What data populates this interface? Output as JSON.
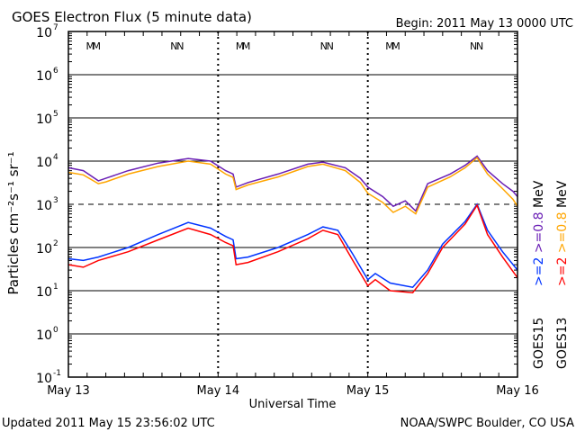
{
  "chart_data": {
    "type": "line",
    "title": "GOES Electron Flux (5 minute data)",
    "begin_label": "Begin: 2011 May 13 0000 UTC",
    "xlabel": "Universal Time",
    "ylabel": "Particles cm⁻²s⁻¹ sr⁻¹",
    "xlim": [
      0,
      3
    ],
    "ylim": [
      0.1,
      10000000
    ],
    "yscale": "log",
    "x_ticks": [
      {
        "value": 0,
        "label": "May 13"
      },
      {
        "value": 1,
        "label": "May 14"
      },
      {
        "value": 2,
        "label": "May 15"
      },
      {
        "value": 3,
        "label": "May 16"
      }
    ],
    "y_ticks": [
      {
        "exp": "7",
        "base": "10"
      },
      {
        "exp": "6",
        "base": "10"
      },
      {
        "exp": "5",
        "base": "10"
      },
      {
        "exp": "4",
        "base": "10"
      },
      {
        "exp": "3",
        "base": "10"
      },
      {
        "exp": "2",
        "base": "10"
      },
      {
        "exp": "1",
        "base": "10"
      },
      {
        "exp": "0",
        "base": "10"
      },
      {
        "exp": "-1",
        "base": "10"
      }
    ],
    "threshold": 1000,
    "markers": [
      {
        "day": 0.17,
        "label": "M"
      },
      {
        "day": 0.73,
        "label": "N"
      },
      {
        "day": 1.17,
        "label": "M"
      },
      {
        "day": 1.73,
        "label": "N"
      },
      {
        "day": 2.17,
        "label": "M"
      },
      {
        "day": 2.73,
        "label": "N"
      }
    ],
    "series": [
      {
        "name": "GOES15 >=0.8 MeV",
        "color": "#6a1fb5",
        "points": [
          [
            0,
            7000
          ],
          [
            0.1,
            6000
          ],
          [
            0.2,
            3500
          ],
          [
            0.25,
            4000
          ],
          [
            0.4,
            6000
          ],
          [
            0.6,
            9000
          ],
          [
            0.8,
            11500
          ],
          [
            0.95,
            10000
          ],
          [
            1.05,
            6000
          ],
          [
            1.1,
            5000
          ],
          [
            1.12,
            2500
          ],
          [
            1.2,
            3200
          ],
          [
            1.4,
            5000
          ],
          [
            1.6,
            8500
          ],
          [
            1.7,
            9500
          ],
          [
            1.85,
            7000
          ],
          [
            1.95,
            4000
          ],
          [
            2.0,
            2500
          ],
          [
            2.1,
            1500
          ],
          [
            2.17,
            900
          ],
          [
            2.25,
            1200
          ],
          [
            2.32,
            700
          ],
          [
            2.4,
            3000
          ],
          [
            2.55,
            5000
          ],
          [
            2.65,
            8000
          ],
          [
            2.73,
            13000
          ],
          [
            2.8,
            6000
          ],
          [
            2.9,
            3000
          ],
          [
            2.97,
            2000
          ],
          [
            3.0,
            1500
          ]
        ]
      },
      {
        "name": "GOES13 >=0.8 MeV",
        "color": "#ffa500",
        "points": [
          [
            0,
            5500
          ],
          [
            0.1,
            4800
          ],
          [
            0.2,
            3000
          ],
          [
            0.25,
            3300
          ],
          [
            0.4,
            5000
          ],
          [
            0.6,
            7500
          ],
          [
            0.8,
            10000
          ],
          [
            0.95,
            8500
          ],
          [
            1.05,
            5000
          ],
          [
            1.1,
            4200
          ],
          [
            1.12,
            2200
          ],
          [
            1.2,
            2800
          ],
          [
            1.4,
            4300
          ],
          [
            1.6,
            7500
          ],
          [
            1.7,
            8500
          ],
          [
            1.85,
            6000
          ],
          [
            1.95,
            3200
          ],
          [
            2.0,
            1800
          ],
          [
            2.1,
            1100
          ],
          [
            2.17,
            650
          ],
          [
            2.25,
            900
          ],
          [
            2.32,
            600
          ],
          [
            2.4,
            2500
          ],
          [
            2.55,
            4300
          ],
          [
            2.65,
            7000
          ],
          [
            2.73,
            12000
          ],
          [
            2.8,
            5000
          ],
          [
            2.9,
            2300
          ],
          [
            2.97,
            1300
          ],
          [
            3.0,
            900
          ]
        ]
      },
      {
        "name": "GOES15 >=2 MeV",
        "color": "#0033ff",
        "points": [
          [
            0,
            55
          ],
          [
            0.1,
            50
          ],
          [
            0.2,
            60
          ],
          [
            0.4,
            100
          ],
          [
            0.6,
            200
          ],
          [
            0.8,
            380
          ],
          [
            0.95,
            280
          ],
          [
            1.05,
            180
          ],
          [
            1.1,
            150
          ],
          [
            1.12,
            55
          ],
          [
            1.2,
            60
          ],
          [
            1.4,
            100
          ],
          [
            1.6,
            200
          ],
          [
            1.7,
            300
          ],
          [
            1.8,
            250
          ],
          [
            1.9,
            70
          ],
          [
            2.0,
            18
          ],
          [
            2.05,
            25
          ],
          [
            2.15,
            15
          ],
          [
            2.3,
            12
          ],
          [
            2.4,
            30
          ],
          [
            2.5,
            120
          ],
          [
            2.65,
            400
          ],
          [
            2.73,
            1000
          ],
          [
            2.8,
            250
          ],
          [
            2.9,
            80
          ],
          [
            3.0,
            30
          ]
        ]
      },
      {
        "name": "GOES13 >=2 MeV",
        "color": "#ff0000",
        "points": [
          [
            0,
            40
          ],
          [
            0.1,
            35
          ],
          [
            0.2,
            50
          ],
          [
            0.4,
            80
          ],
          [
            0.6,
            150
          ],
          [
            0.8,
            280
          ],
          [
            0.95,
            200
          ],
          [
            1.05,
            130
          ],
          [
            1.1,
            110
          ],
          [
            1.12,
            40
          ],
          [
            1.2,
            45
          ],
          [
            1.4,
            80
          ],
          [
            1.6,
            160
          ],
          [
            1.7,
            250
          ],
          [
            1.8,
            200
          ],
          [
            1.9,
            50
          ],
          [
            2.0,
            13
          ],
          [
            2.05,
            18
          ],
          [
            2.15,
            10
          ],
          [
            2.3,
            9
          ],
          [
            2.4,
            25
          ],
          [
            2.5,
            100
          ],
          [
            2.65,
            350
          ],
          [
            2.73,
            950
          ],
          [
            2.8,
            200
          ],
          [
            2.9,
            60
          ],
          [
            3.0,
            20
          ]
        ]
      }
    ],
    "legend": {
      "position": "right",
      "col1": [
        {
          "text": ">=2",
          "color": "#0033ff"
        },
        {
          "text": ">=0.8",
          "color": "#6a1fb5"
        },
        {
          "text": "MeV",
          "color": "#000000"
        }
      ],
      "col2": [
        {
          "text": ">=2",
          "color": "#ff0000"
        },
        {
          "text": ">=0.8",
          "color": "#ffa500"
        },
        {
          "text": "MeV",
          "color": "#000000"
        }
      ],
      "sat1": "GOES15",
      "sat2": "GOES13"
    }
  },
  "footer": {
    "updated": "Updated 2011 May 15 23:56:02 UTC",
    "credit": "NOAA/SWPC Boulder, CO USA"
  }
}
